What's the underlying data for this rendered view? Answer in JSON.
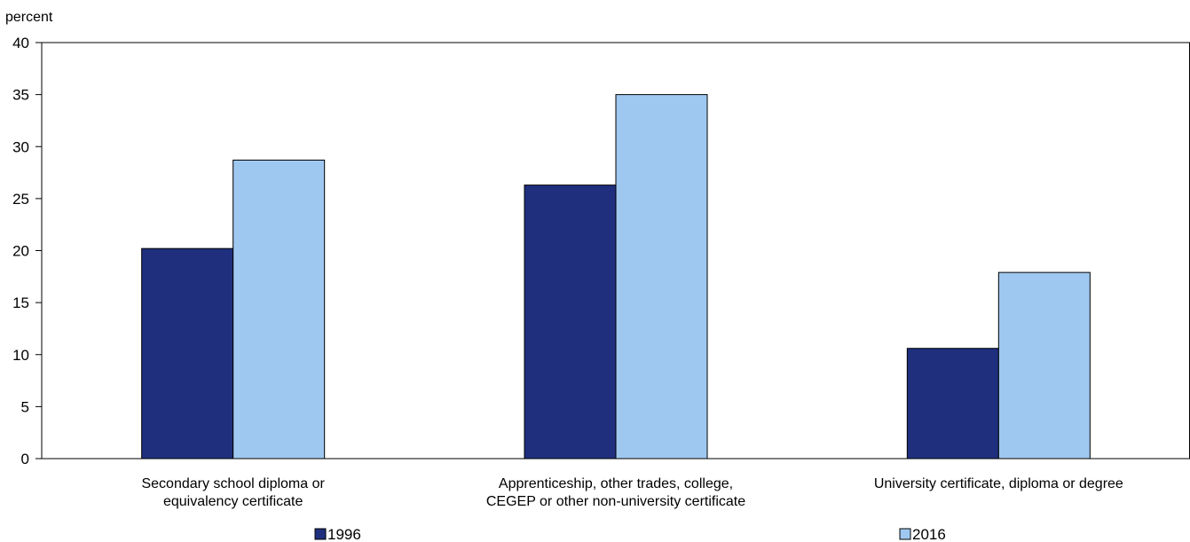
{
  "chart_data": {
    "type": "bar",
    "ylabel": "percent",
    "ylim": [
      0,
      40
    ],
    "yticks": [
      0,
      5,
      10,
      15,
      20,
      25,
      30,
      35,
      40
    ],
    "grid": false,
    "legend_position": "bottom",
    "categories": [
      [
        "Secondary school diploma or",
        "equivalency certificate"
      ],
      [
        "Apprenticeship, other trades, college,",
        "CEGEP or other non-university certificate"
      ],
      [
        "University certificate, diploma or degree"
      ]
    ],
    "series": [
      {
        "name": "1996",
        "color": "#1f2f7e",
        "values": [
          20.2,
          26.3,
          10.6
        ]
      },
      {
        "name": "2016",
        "color": "#9fc8f0",
        "values": [
          28.7,
          35.0,
          17.9
        ]
      }
    ]
  }
}
